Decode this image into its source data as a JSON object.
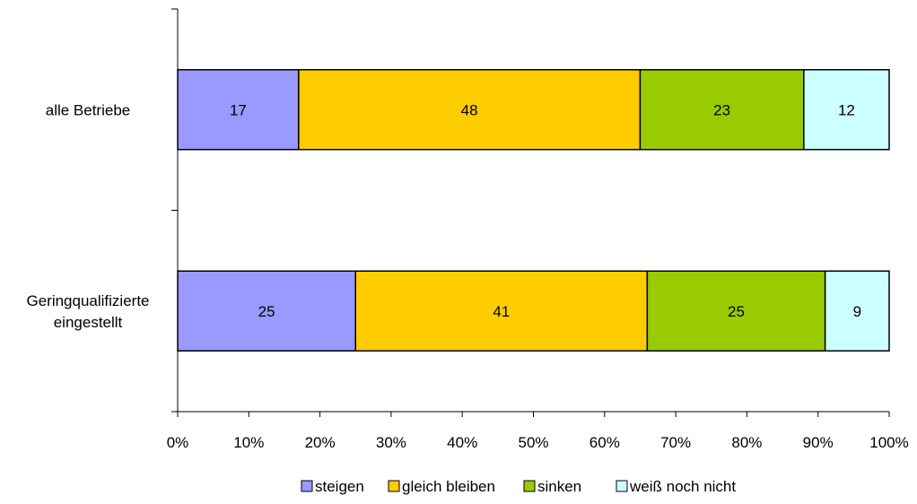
{
  "chart_data": {
    "type": "bar",
    "orientation": "horizontal",
    "stacked": true,
    "percent_stacked": true,
    "categories": [
      "alle Betriebe",
      "Geringqualifizierte eingestellt"
    ],
    "category_lines": [
      [
        "alle Betriebe"
      ],
      [
        "Geringqualifizierte",
        "eingestellt"
      ]
    ],
    "series": [
      {
        "name": "steigen",
        "values": [
          17,
          25
        ],
        "color": "#9999FF"
      },
      {
        "name": "gleich bleiben",
        "values": [
          48,
          41
        ],
        "color": "#FFCC00"
      },
      {
        "name": "sinken",
        "values": [
          23,
          25
        ],
        "color": "#99CC00"
      },
      {
        "name": "weiß noch nicht",
        "values": [
          12,
          9
        ],
        "color": "#CCFFFF"
      }
    ],
    "xlim": [
      0,
      100
    ],
    "xticks": [
      "0%",
      "10%",
      "20%",
      "30%",
      "40%",
      "50%",
      "60%",
      "70%",
      "80%",
      "90%",
      "100%"
    ],
    "grid": false,
    "legend_position": "bottom",
    "title": "",
    "xlabel": "",
    "ylabel": ""
  }
}
